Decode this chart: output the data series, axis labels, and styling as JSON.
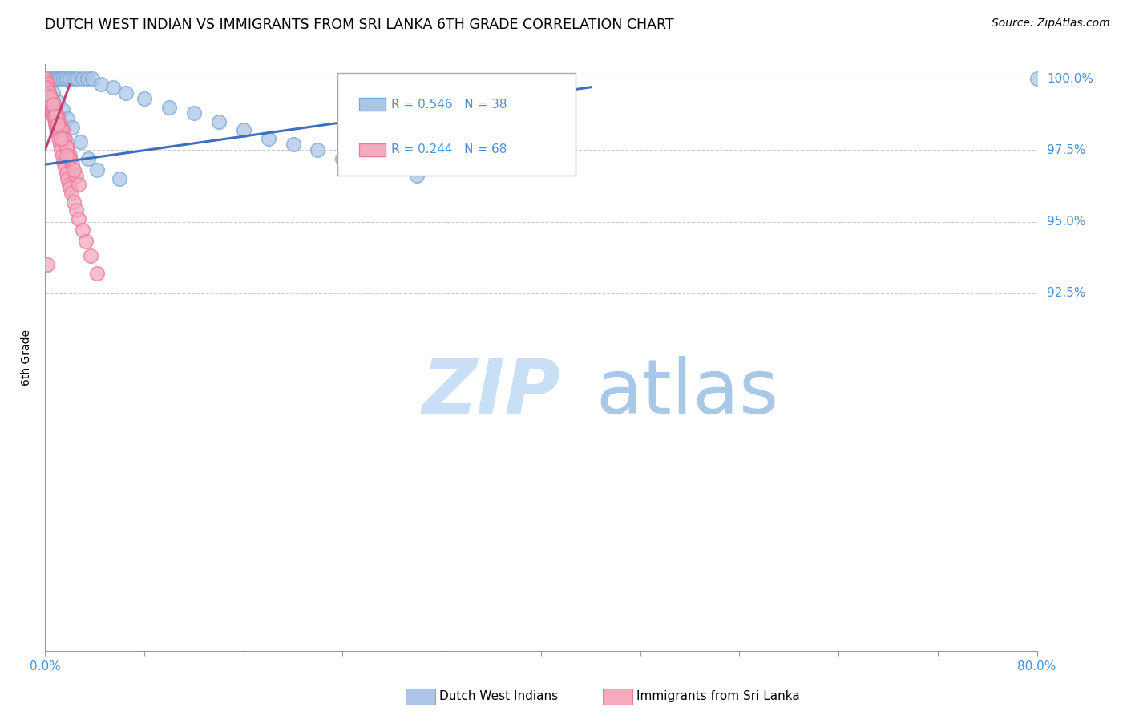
{
  "title": "DUTCH WEST INDIAN VS IMMIGRANTS FROM SRI LANKA 6TH GRADE CORRELATION CHART",
  "source": "Source: ZipAtlas.com",
  "ylabel": "6th Grade",
  "x_min": 0.0,
  "x_max": 80.0,
  "y_min": 80.0,
  "y_max": 100.5,
  "y_ticks": [
    92.5,
    95.0,
    97.5,
    100.0
  ],
  "legend_r_blue": "R = 0.546",
  "legend_n_blue": "N = 38",
  "legend_r_pink": "R = 0.244",
  "legend_n_pink": "N = 68",
  "legend1_label": "Dutch West Indians",
  "legend2_label": "Immigrants from Sri Lanka",
  "blue_color": "#adc6e8",
  "blue_edge_color": "#7aaad4",
  "pink_color": "#f5aabe",
  "pink_edge_color": "#e87a9a",
  "trend_blue_color": "#3a6fc4",
  "trend_pink_color": "#c04070",
  "axis_label_color": "#4a90d9",
  "text_color": "#4a90d9",
  "watermark_color": "#ddeefa",
  "grid_color": "#cccccc",
  "blue_x": [
    0.3,
    0.5,
    0.7,
    0.9,
    1.1,
    1.3,
    1.5,
    1.7,
    2.0,
    2.3,
    2.6,
    3.0,
    3.4,
    3.8,
    4.5,
    5.5,
    6.5,
    8.0,
    10.0,
    12.0,
    14.0,
    16.0,
    18.0,
    20.0,
    22.0,
    24.0,
    27.0,
    30.0,
    0.6,
    1.0,
    1.4,
    1.8,
    2.2,
    2.8,
    3.5,
    4.2,
    6.0,
    80.0
  ],
  "blue_y": [
    100.0,
    100.0,
    100.0,
    100.0,
    100.0,
    100.0,
    100.0,
    100.0,
    100.0,
    100.0,
    100.0,
    100.0,
    100.0,
    100.0,
    99.8,
    99.7,
    99.5,
    99.3,
    99.0,
    98.8,
    98.5,
    98.2,
    97.9,
    97.7,
    97.5,
    97.2,
    96.9,
    96.6,
    99.5,
    99.2,
    98.9,
    98.6,
    98.3,
    97.8,
    97.2,
    96.8,
    96.5,
    100.0
  ],
  "pink_x": [
    0.05,
    0.1,
    0.15,
    0.2,
    0.25,
    0.3,
    0.35,
    0.4,
    0.45,
    0.5,
    0.55,
    0.6,
    0.65,
    0.7,
    0.75,
    0.8,
    0.85,
    0.9,
    0.95,
    1.0,
    1.1,
    1.2,
    1.3,
    1.4,
    1.5,
    1.6,
    1.7,
    1.8,
    1.9,
    2.0,
    2.1,
    2.3,
    2.5,
    2.7,
    3.0,
    3.3,
    3.7,
    4.2,
    0.2,
    0.4,
    0.6,
    0.8,
    1.0,
    1.2,
    1.4,
    1.6,
    1.8,
    2.0,
    2.2,
    2.5,
    0.3,
    0.5,
    0.7,
    0.9,
    1.1,
    1.3,
    1.5,
    1.7,
    2.0,
    2.3,
    2.7,
    0.4,
    0.6,
    0.8,
    1.0,
    1.3,
    1.7,
    0.2
  ],
  "pink_y": [
    100.0,
    99.9,
    99.8,
    99.7,
    99.6,
    99.5,
    99.4,
    99.3,
    99.2,
    99.1,
    99.0,
    98.9,
    98.8,
    98.7,
    98.6,
    98.5,
    98.4,
    98.3,
    98.2,
    98.1,
    97.9,
    97.7,
    97.5,
    97.3,
    97.1,
    96.9,
    96.7,
    96.5,
    96.3,
    96.2,
    96.0,
    95.7,
    95.4,
    95.1,
    94.7,
    94.3,
    93.8,
    93.2,
    99.6,
    99.4,
    99.2,
    99.0,
    98.7,
    98.4,
    98.2,
    97.9,
    97.6,
    97.3,
    97.0,
    96.6,
    99.5,
    99.3,
    99.0,
    98.8,
    98.5,
    98.2,
    97.9,
    97.6,
    97.2,
    96.8,
    96.3,
    99.4,
    99.1,
    98.7,
    98.4,
    97.9,
    97.3,
    93.5
  ],
  "blue_trend_x": [
    0.0,
    44.0
  ],
  "blue_trend_y": [
    97.0,
    99.7
  ],
  "pink_trend_x": [
    0.0,
    2.0
  ],
  "pink_trend_y": [
    97.5,
    99.8
  ]
}
